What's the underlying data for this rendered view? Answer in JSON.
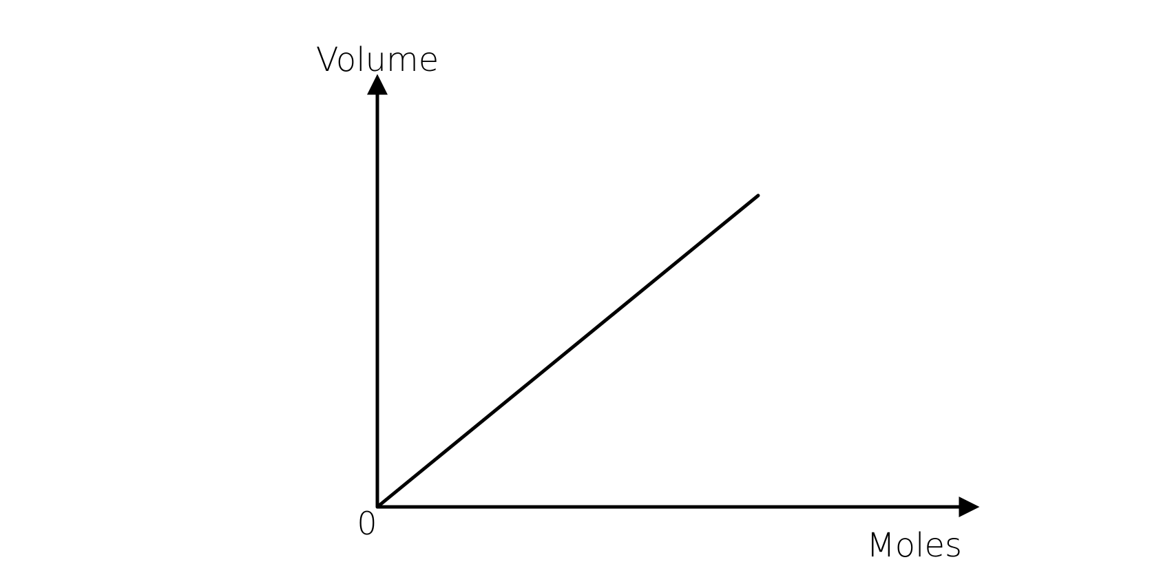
{
  "chart_data": {
    "type": "line",
    "xlabel": "Moles",
    "ylabel": "Volume",
    "origin_label": "0",
    "series": [
      {
        "x": [
          0,
          0.7
        ],
        "y": [
          0,
          0.74
        ]
      }
    ],
    "xlim": [
      0,
      1
    ],
    "ylim": [
      0,
      1
    ],
    "grid": false,
    "colors": {
      "axis": "#000000",
      "line": "#000000"
    }
  }
}
